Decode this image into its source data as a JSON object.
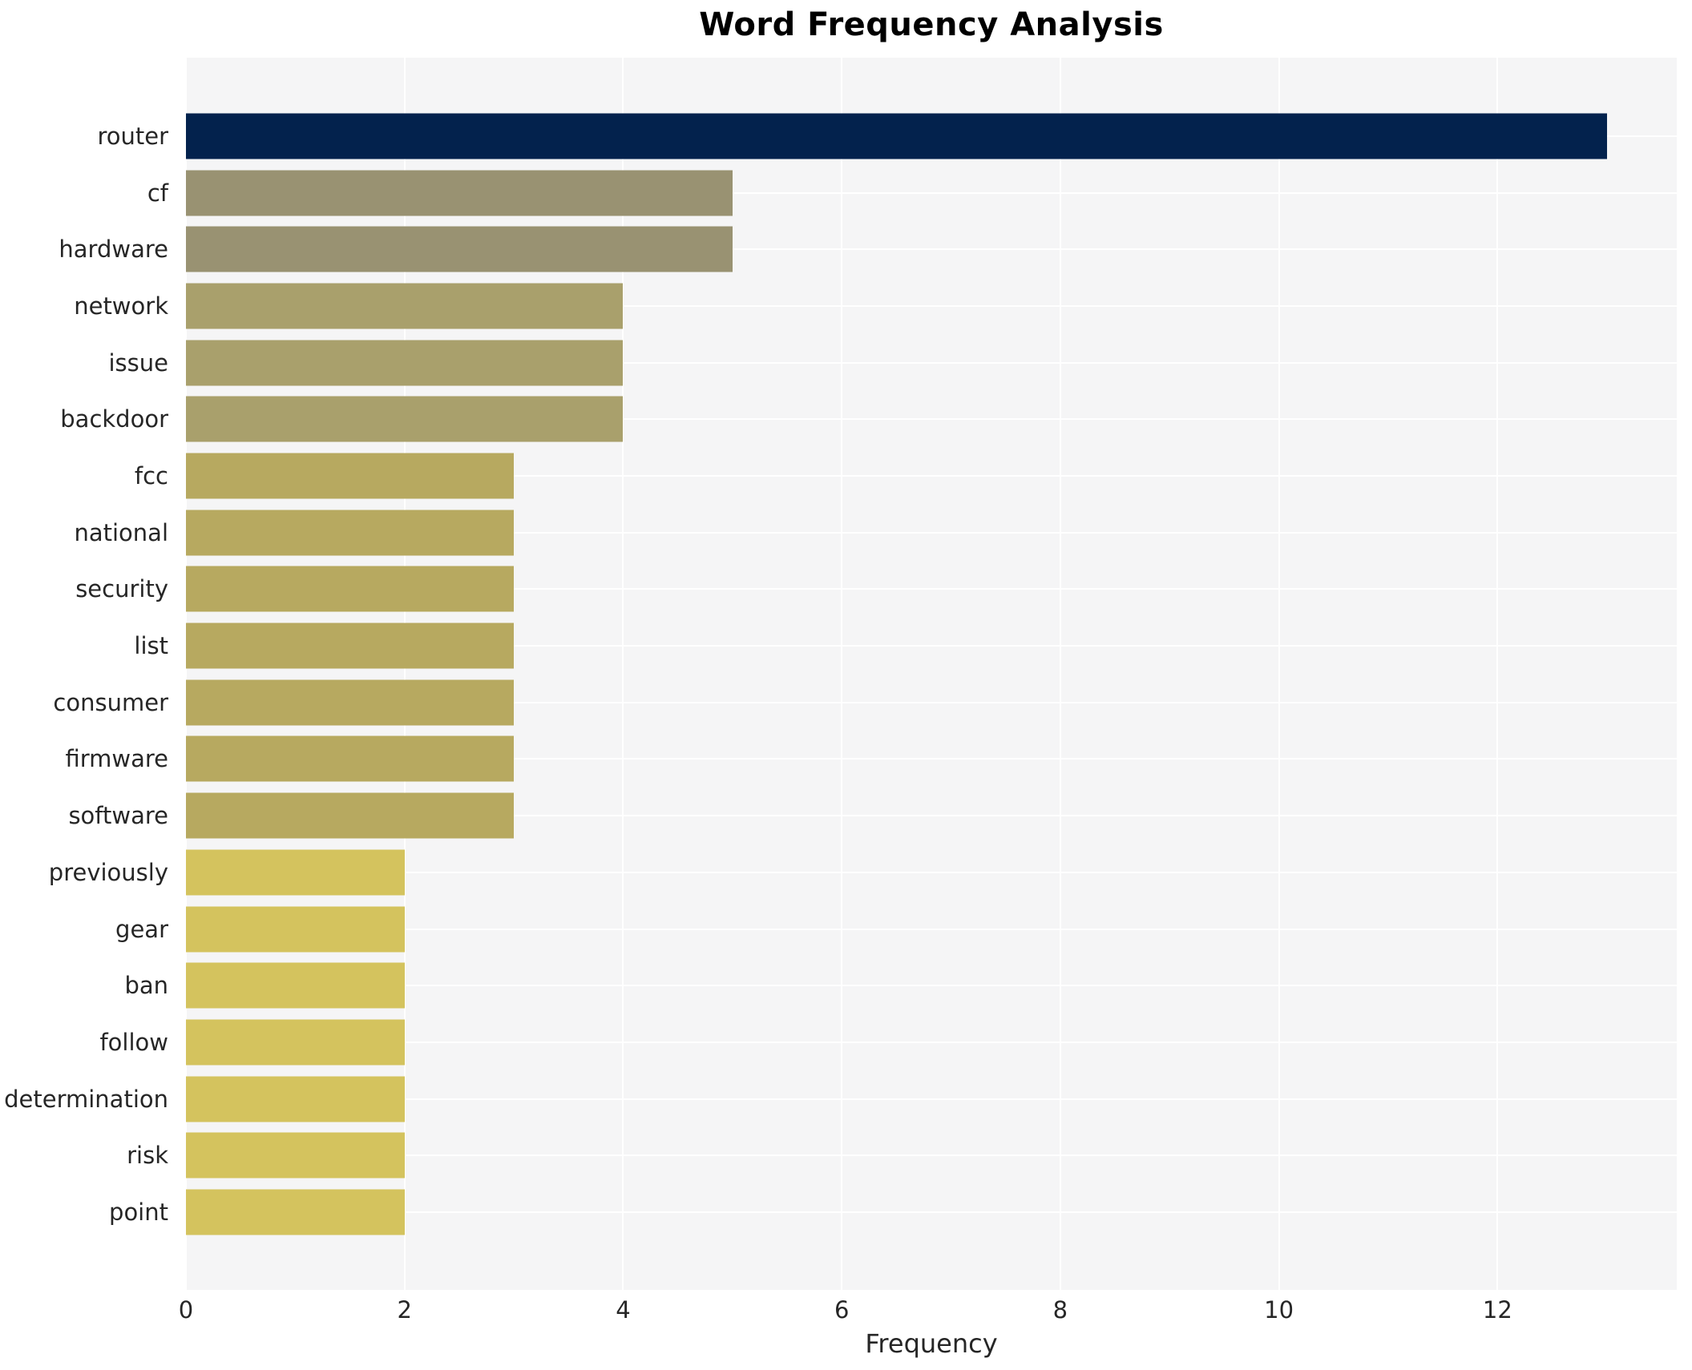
{
  "chart_data": {
    "type": "bar",
    "orientation": "horizontal",
    "title": "Word Frequency Analysis",
    "xlabel": "Frequency",
    "ylabel": "",
    "categories": [
      "router",
      "cf",
      "hardware",
      "network",
      "issue",
      "backdoor",
      "fcc",
      "national",
      "security",
      "list",
      "consumer",
      "firmware",
      "software",
      "previously",
      "gear",
      "ban",
      "follow",
      "determination",
      "risk",
      "point"
    ],
    "values": [
      13,
      5,
      5,
      4,
      4,
      4,
      3,
      3,
      3,
      3,
      3,
      3,
      3,
      2,
      2,
      2,
      2,
      2,
      2,
      2
    ],
    "bar_colors": [
      "#03224d",
      "#999272",
      "#999272",
      "#a9a06c",
      "#a9a06c",
      "#a9a06c",
      "#b7a960",
      "#b7a960",
      "#b7a960",
      "#b7a960",
      "#b7a960",
      "#b7a960",
      "#b7a960",
      "#d4c35e",
      "#d4c35e",
      "#d4c35e",
      "#d4c35e",
      "#d4c35e",
      "#d4c35e",
      "#d4c35e"
    ],
    "xticks": [
      0,
      2,
      4,
      6,
      8,
      10,
      12
    ],
    "xlim": [
      0,
      13.64
    ],
    "grid": true,
    "legend": false,
    "plot_bg_color": "#f5f5f6",
    "grid_color": "#ffffff",
    "text_color": "#262626"
  }
}
